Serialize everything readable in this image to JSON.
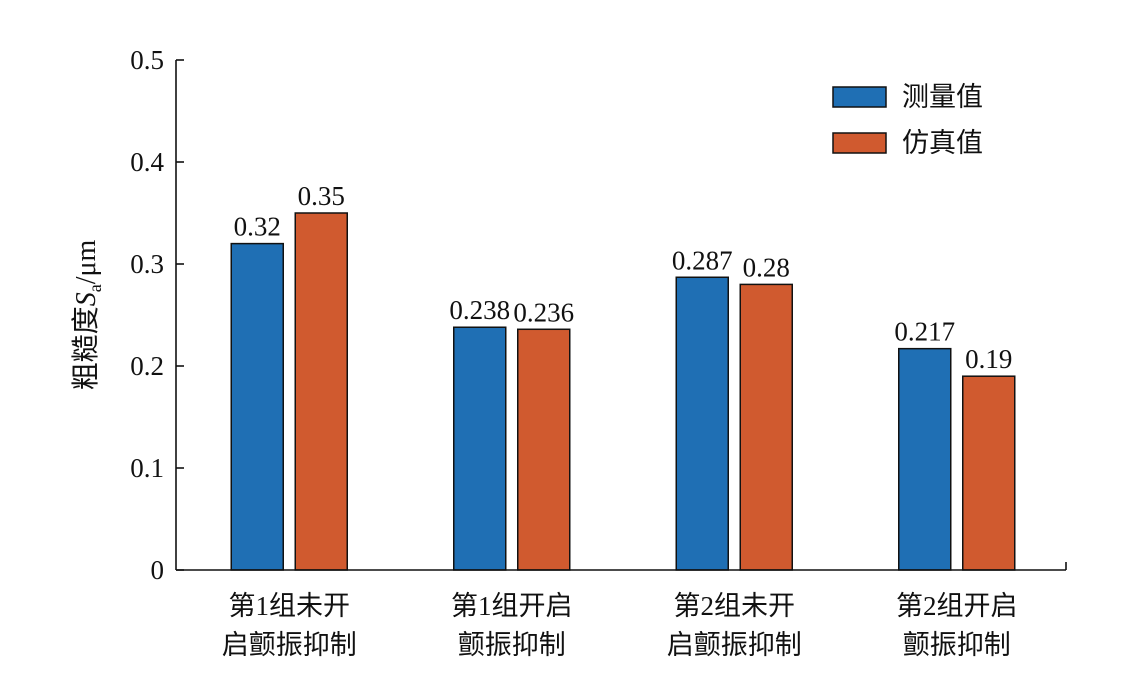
{
  "chart_data": {
    "type": "bar",
    "categories": [
      [
        "第1组未开",
        "启颤振抑制"
      ],
      [
        "第1组开启",
        "颤振抑制"
      ],
      [
        "第2组未开",
        "启颤振抑制"
      ],
      [
        "第2组开启",
        "颤振抑制"
      ]
    ],
    "series": [
      {
        "name": "测量值",
        "color": "#1f6fb4",
        "values": [
          0.32,
          0.238,
          0.287,
          0.217
        ],
        "labels": [
          "0.32",
          "0.238",
          "0.287",
          "0.217"
        ]
      },
      {
        "name": "仿真值",
        "color": "#d05a2f",
        "values": [
          0.35,
          0.236,
          0.28,
          0.19
        ],
        "labels": [
          "0.35",
          "0.236",
          "0.28",
          "0.19"
        ]
      }
    ],
    "ylabel": {
      "main": "粗糙度",
      "symbol": "S",
      "subscript": "a",
      "unit": "/μm"
    },
    "ylim": [
      0,
      0.5
    ],
    "yticks": [
      0,
      0.1,
      0.2,
      0.3,
      0.4,
      0.5
    ],
    "ytick_labels": [
      "0",
      "0.1",
      "0.2",
      "0.3",
      "0.4",
      "0.5"
    ],
    "grid": false,
    "legend_position": "top-right"
  }
}
